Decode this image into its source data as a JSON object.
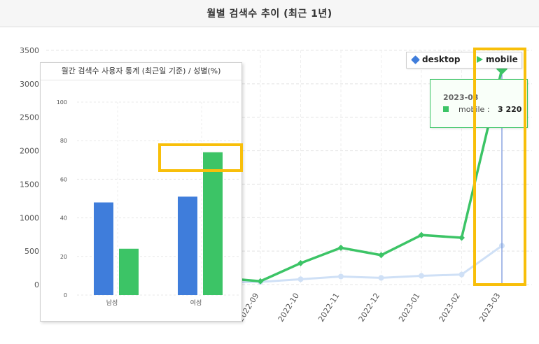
{
  "header": {
    "title": "월별 검색수 추이 (최근 1년)"
  },
  "legend": {
    "desktop": "desktop",
    "mobile": "mobile"
  },
  "colors": {
    "desktop": "#3f7ddb",
    "mobile": "#3cc466",
    "desktop_faded": "#cfe0f6",
    "highlight": "#f8bf0a"
  },
  "tooltip": {
    "date": "2023-03",
    "series": "mobile",
    "separator": ":",
    "value": "3 220"
  },
  "chart_data": [
    {
      "type": "line",
      "title": "월별 검색수 추이 (최근 1년)",
      "x": [
        "2022-09",
        "2022-10",
        "2022-11",
        "2022-12",
        "2023-01",
        "2023-02",
        "2023-03"
      ],
      "ylim": [
        0,
        3500
      ],
      "yticks": [
        0,
        500,
        1000,
        1500,
        2000,
        2500,
        3000,
        3500
      ],
      "grid": true,
      "legend": "top-right",
      "series": [
        {
          "name": "desktop",
          "values": [
            40,
            80,
            120,
            100,
            130,
            150,
            580
          ]
        },
        {
          "name": "mobile",
          "values": [
            50,
            320,
            550,
            440,
            740,
            700,
            3220
          ]
        }
      ],
      "partial_left_mobile": 100,
      "partial_left_desktop": 30
    },
    {
      "type": "bar",
      "title": "월간 검색수 사용자 통계 (최근일 기준) / 성별(%)",
      "categories": [
        "남성",
        "여성"
      ],
      "ylim": [
        0,
        100
      ],
      "yticks": [
        0,
        20,
        40,
        60,
        80,
        100
      ],
      "series": [
        {
          "values": [
            48,
            51
          ]
        },
        {
          "values": [
            24,
            74
          ]
        }
      ]
    }
  ]
}
